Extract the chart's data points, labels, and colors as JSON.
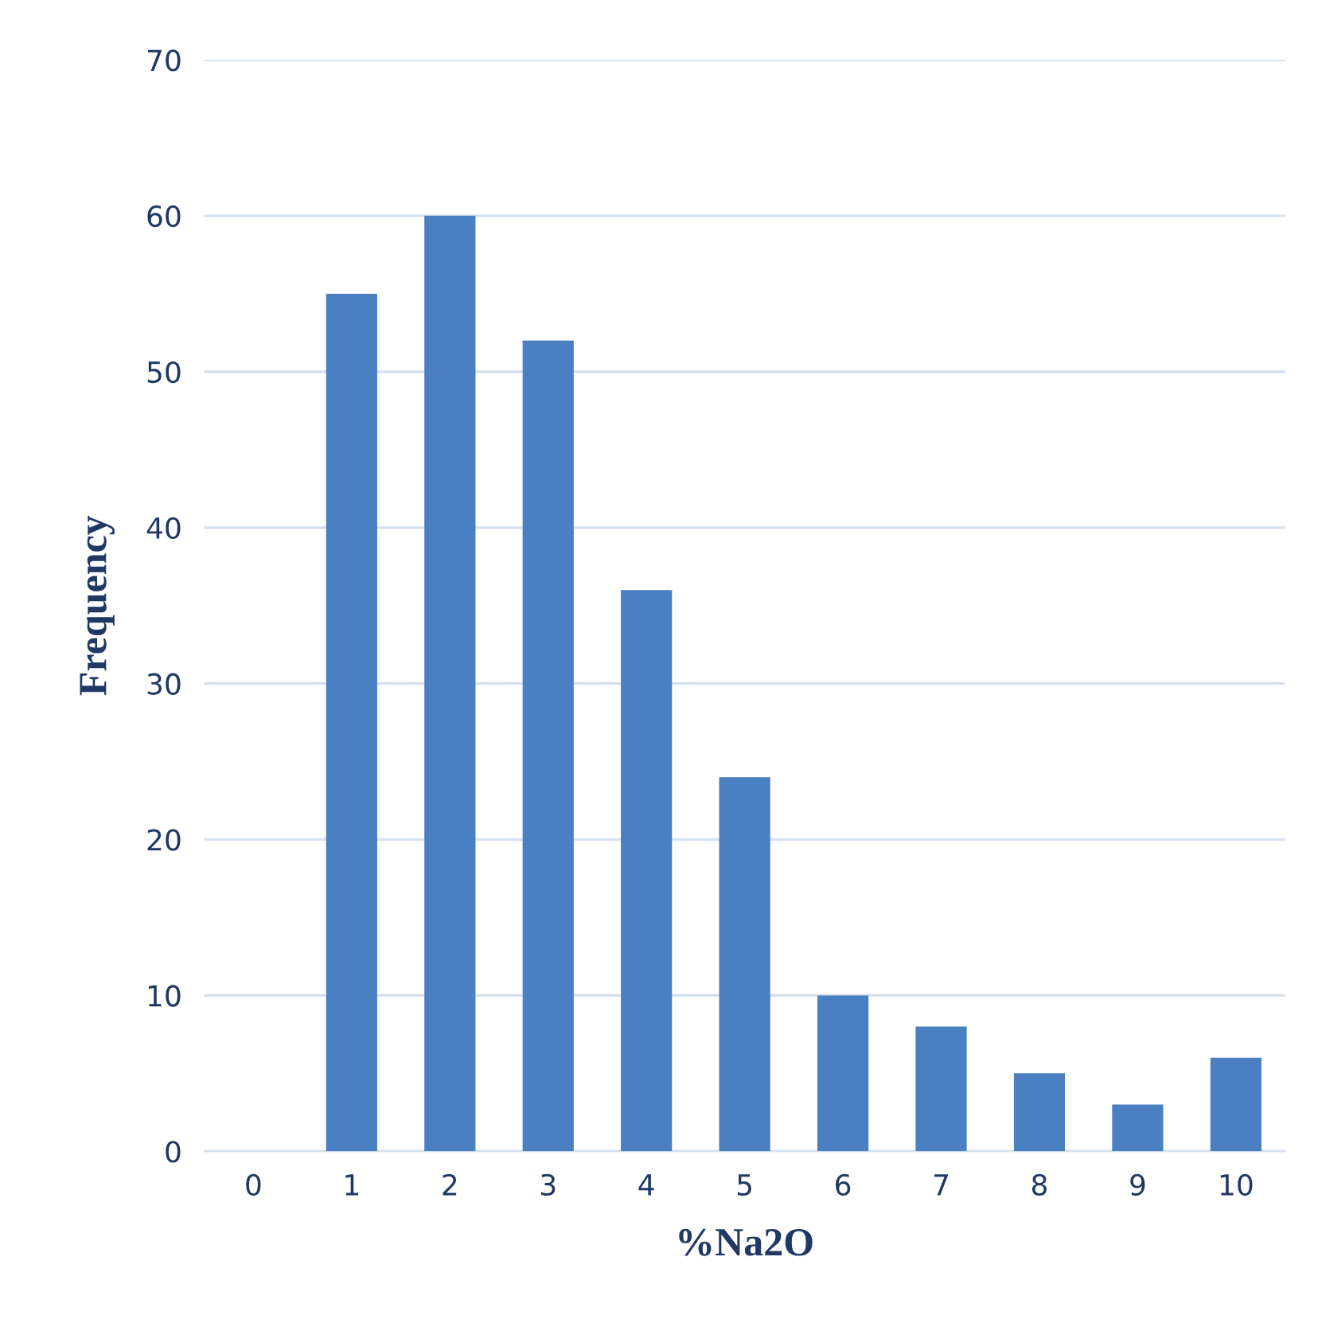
{
  "chart_data": {
    "type": "bar",
    "xlabel": "%Na2O",
    "ylabel": "Frequency",
    "categories": [
      "0",
      "1",
      "2",
      "3",
      "4",
      "5",
      "6",
      "7",
      "8",
      "9",
      "10"
    ],
    "values": [
      0,
      55,
      60,
      52,
      36,
      24,
      10,
      8,
      5,
      3,
      6
    ],
    "color": "#4a7fc1",
    "ylim": [
      0,
      70
    ],
    "yticks": [
      0,
      10,
      20,
      30,
      40,
      50,
      60,
      70
    ],
    "grid": "y"
  }
}
